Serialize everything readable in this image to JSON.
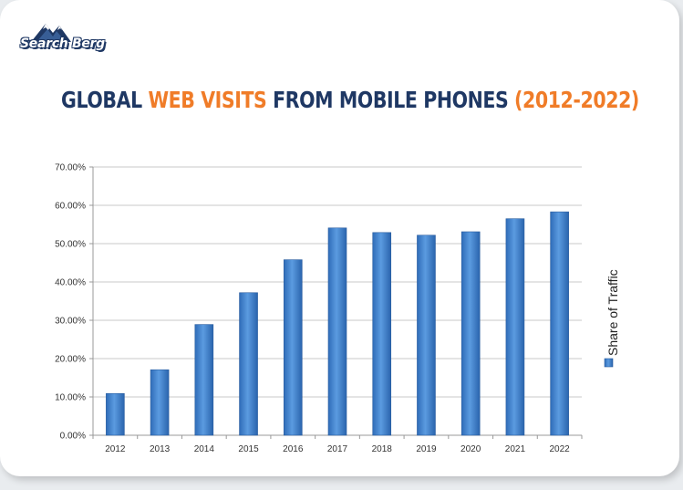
{
  "brand": {
    "logo_text": "Search Berg"
  },
  "title": {
    "part1": "GLOBAL ",
    "part2": "WEB VISITS",
    "part3": " FROM MOBILE PHONES ",
    "part4": "(2012-2022)"
  },
  "colors": {
    "title_dark": "#1f3864",
    "title_accent": "#f07c28",
    "bar": "#4a8ad4",
    "bar_dark": "#2f6cb8"
  },
  "chart_data": {
    "type": "bar",
    "categories": [
      "2012",
      "2013",
      "2014",
      "2015",
      "2016",
      "2017",
      "2018",
      "2019",
      "2020",
      "2021",
      "2022"
    ],
    "series": [
      {
        "name": "Share of Traffic",
        "values": [
          10.9,
          17.1,
          28.9,
          37.2,
          45.8,
          54.1,
          52.9,
          52.2,
          53.1,
          56.5,
          58.3
        ]
      }
    ],
    "yticks": [
      "0.00%",
      "10.00%",
      "20.00%",
      "30.00%",
      "40.00%",
      "50.00%",
      "60.00%",
      "70.00%"
    ],
    "ylim": [
      0,
      70
    ],
    "ylabel": "",
    "xlabel": "",
    "grid": true,
    "legend_position": "right"
  }
}
